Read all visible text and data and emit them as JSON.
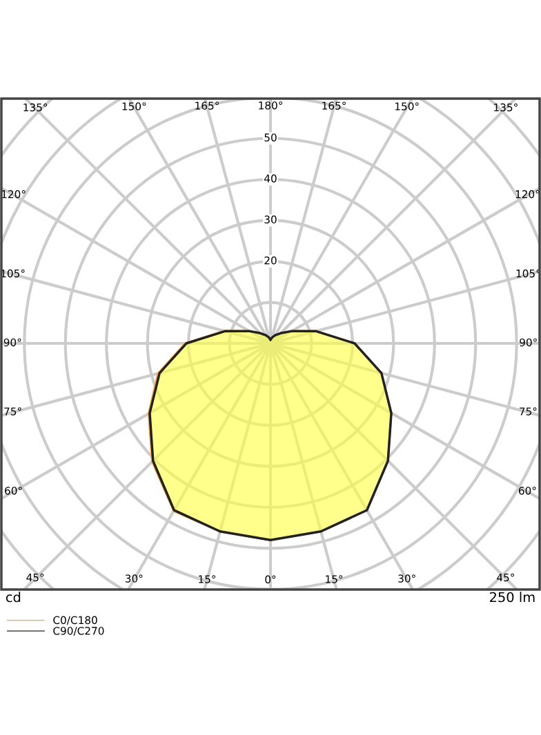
{
  "chart_data": {
    "type": "radar",
    "categories": [
      "180°",
      "165°",
      "150°",
      "135°",
      "120°",
      "105°",
      "90°",
      "75°",
      "60°",
      "45°",
      "30°",
      "15°",
      "0°",
      "15°",
      "30°",
      "45°",
      "60°",
      "75°",
      "90°",
      "105°",
      "120°",
      "135°",
      "150°",
      "165°"
    ],
    "series": [
      {
        "name": "C0/C180",
        "color": "#f5a442",
        "values": [
          0.9,
          1.5,
          2.3,
          3.5,
          6,
          11.5,
          20.5,
          28,
          34,
          40.5,
          47,
          47.5,
          48,
          47.5,
          47.2,
          40.8,
          34.3,
          28.4,
          20.8,
          11.7,
          6,
          3.5,
          2.3,
          1.5
        ]
      },
      {
        "name": "C90/C270",
        "color": "#222222",
        "values": [
          0.9,
          1.5,
          2.3,
          3.5,
          6,
          11.5,
          20.5,
          28,
          34,
          40.5,
          47,
          47.5,
          48,
          47.5,
          47,
          40.5,
          34,
          28,
          20.5,
          11.5,
          6,
          3.5,
          2.3,
          1.5
        ]
      }
    ],
    "ylim": [
      0,
      90
    ],
    "yticks": [
      20,
      30,
      40,
      50
    ],
    "grid": true,
    "legend": "bottom left",
    "annotations": [
      "cd",
      "250 lm"
    ]
  }
}
